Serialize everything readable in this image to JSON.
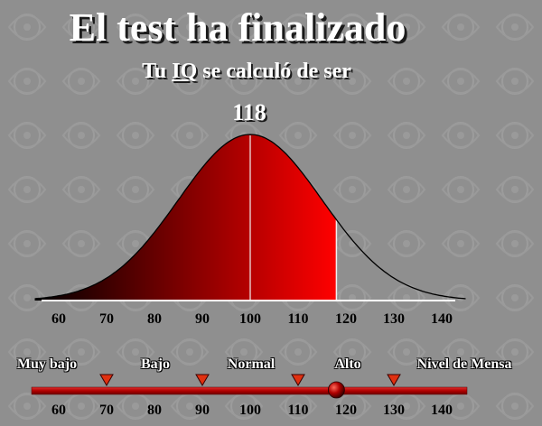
{
  "header": {
    "title": "El test ha finalizado",
    "subtitle_prefix": "Tu",
    "subtitle_iq": "IQ",
    "subtitle_suffix": "se calculó de ser",
    "score": "118"
  },
  "chart_data": {
    "type": "area",
    "description": "Normal distribution of IQ scores, shaded up to the obtained score",
    "mean": 100,
    "std_dev": 15,
    "score_value": 118,
    "xlim": [
      55,
      145
    ],
    "x_ticks": [
      60,
      70,
      80,
      90,
      100,
      110,
      120,
      130,
      140
    ],
    "fill_gradient": [
      "#000000",
      "#ff0000"
    ]
  },
  "scale": {
    "ticks": [
      60,
      70,
      80,
      90,
      100,
      110,
      120,
      130,
      140
    ],
    "markers": [
      70,
      90,
      110,
      130
    ],
    "knob_value": 118,
    "categories": [
      "Muy bajo",
      "Bajo",
      "Normal",
      "Alto",
      "Nivel de Mensa"
    ],
    "bar_color": "#c01010",
    "marker_color": "#e03010"
  }
}
